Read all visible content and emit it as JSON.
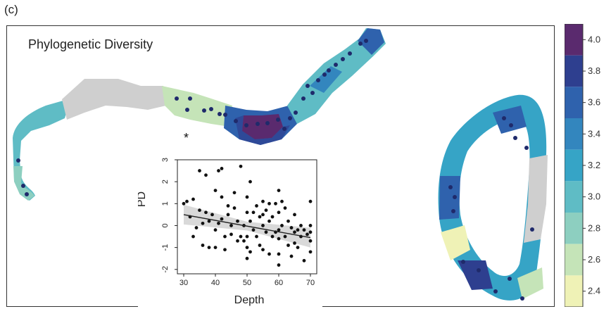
{
  "panel_label": "(c)",
  "map_title": "Phylogenetic Diversity",
  "annotation": "*",
  "legend": {
    "values": [
      "4.0",
      "3.8",
      "3.6",
      "3.4",
      "3.2",
      "3.0",
      "2.8",
      "2.6",
      "2.4"
    ],
    "colors": [
      "#5a2a6e",
      "#2e3f8f",
      "#2f62ad",
      "#3386be",
      "#36a4c6",
      "#5fbcc5",
      "#8dcfc0",
      "#c5e4b8",
      "#eff2b6"
    ]
  },
  "colors": {
    "no_data": "#cfcfcf",
    "site_point": "#1f2a6b",
    "border": "#333333"
  },
  "inset": {
    "chart_data": {
      "type": "scatter",
      "xlabel": "Depth",
      "ylabel": "PD",
      "xlim": [
        28,
        72
      ],
      "ylim": [
        -2.2,
        3.0
      ],
      "xticks": [
        "30",
        "40",
        "50",
        "60",
        "70"
      ],
      "yticks": [
        "-2",
        "-1",
        "0",
        "1",
        "2",
        "3"
      ],
      "points": [
        [
          30,
          1.0
        ],
        [
          31,
          1.1
        ],
        [
          32,
          0.4
        ],
        [
          33,
          1.2
        ],
        [
          33,
          -0.5
        ],
        [
          34,
          -0.1
        ],
        [
          35,
          2.5
        ],
        [
          35,
          0.7
        ],
        [
          36,
          0.1
        ],
        [
          36,
          -0.9
        ],
        [
          37,
          2.3
        ],
        [
          37,
          0.6
        ],
        [
          38,
          -1.0
        ],
        [
          38,
          0.2
        ],
        [
          39,
          0.5
        ],
        [
          40,
          1.6
        ],
        [
          40,
          -0.2
        ],
        [
          40,
          -1.0
        ],
        [
          41,
          0.1
        ],
        [
          41,
          2.5
        ],
        [
          42,
          2.6
        ],
        [
          42,
          1.3
        ],
        [
          42,
          0.3
        ],
        [
          43,
          -0.5
        ],
        [
          43,
          -1.1
        ],
        [
          44,
          0.9
        ],
        [
          44,
          0.5
        ],
        [
          45,
          -0.4
        ],
        [
          45,
          0.0
        ],
        [
          46,
          1.5
        ],
        [
          46,
          0.8
        ],
        [
          47,
          -0.7
        ],
        [
          47,
          0.2
        ],
        [
          48,
          2.7
        ],
        [
          48,
          -0.5
        ],
        [
          49,
          0.0
        ],
        [
          49,
          -0.7
        ],
        [
          50,
          1.3
        ],
        [
          50,
          0.6
        ],
        [
          50,
          -0.5
        ],
        [
          50,
          -1.0
        ],
        [
          50,
          -1.5
        ],
        [
          51,
          2.0
        ],
        [
          51,
          0.2
        ],
        [
          51,
          -1.2
        ],
        [
          52,
          0.6
        ],
        [
          52,
          -0.2
        ],
        [
          53,
          -0.5
        ],
        [
          53,
          0.9
        ],
        [
          54,
          0.4
        ],
        [
          54,
          -0.9
        ],
        [
          55,
          1.1
        ],
        [
          55,
          0.5
        ],
        [
          55,
          0.0
        ],
        [
          55,
          -1.1
        ],
        [
          56,
          0.7
        ],
        [
          56,
          -0.3
        ],
        [
          57,
          1.0
        ],
        [
          57,
          0.2
        ],
        [
          57,
          -1.3
        ],
        [
          58,
          0.4
        ],
        [
          58,
          -0.5
        ],
        [
          59,
          -0.3
        ],
        [
          59,
          1.0
        ],
        [
          60,
          1.6
        ],
        [
          60,
          0.6
        ],
        [
          60,
          -0.2
        ],
        [
          60,
          -0.6
        ],
        [
          60,
          -1.3
        ],
        [
          60,
          -1.8
        ],
        [
          61,
          1.1
        ],
        [
          61,
          0.0
        ],
        [
          62,
          -0.5
        ],
        [
          62,
          0.8
        ],
        [
          63,
          0.2
        ],
        [
          63,
          -0.9
        ],
        [
          64,
          -0.1
        ],
        [
          64,
          -1.4
        ],
        [
          65,
          0.5
        ],
        [
          65,
          -0.3
        ],
        [
          65,
          -0.8
        ],
        [
          66,
          -0.2
        ],
        [
          66,
          -1.0
        ],
        [
          67,
          0.0
        ],
        [
          67,
          -0.5
        ],
        [
          68,
          -0.2
        ],
        [
          68,
          -1.6
        ],
        [
          69,
          -0.4
        ],
        [
          70,
          1.1
        ],
        [
          70,
          0.0
        ],
        [
          70,
          -0.3
        ],
        [
          70,
          -0.7
        ],
        [
          70,
          -1.2
        ]
      ],
      "trend": {
        "x": [
          30,
          70
        ],
        "y": [
          0.5,
          -0.55
        ]
      }
    }
  }
}
